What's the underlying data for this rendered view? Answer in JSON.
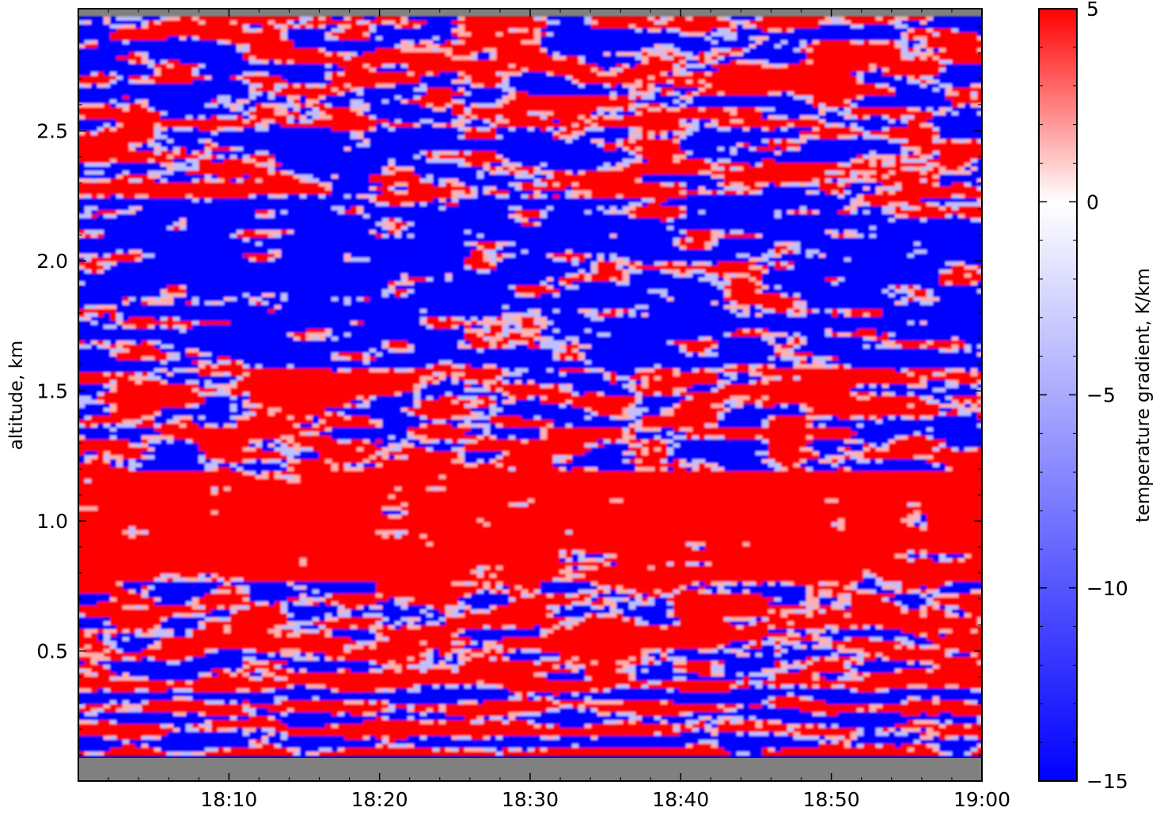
{
  "chart_data": [
    {
      "type": "heatmap",
      "title": "",
      "xlabel": "",
      "ylabel": "altitude, km",
      "x_tick_labels": [
        "18:10",
        "18:20",
        "18:30",
        "18:40",
        "18:50",
        "19:00"
      ],
      "x_tick_values": [
        "18:10",
        "18:20",
        "18:30",
        "18:40",
        "18:50",
        "19:00"
      ],
      "xlim": [
        "18:00",
        "19:00"
      ],
      "y_tick_labels": [
        "0.5",
        "1.0",
        "1.5",
        "2.0",
        "2.5"
      ],
      "y_tick_values": [
        0.5,
        1.0,
        1.5,
        2.0,
        2.5
      ],
      "ylim": [
        0.0,
        2.97
      ],
      "valid_altitude_range_km": [
        0.1,
        2.94
      ],
      "missing_data_color": "#808080",
      "grid": false,
      "dominant_layers": [
        {
          "altitude_km": [
            0.1,
            0.4
          ],
          "pattern": "alternating thin positive and negative layers"
        },
        {
          "altitude_km": [
            0.4,
            0.78
          ],
          "pattern": "mixed, mostly positive"
        },
        {
          "altitude_km": [
            0.78,
            1.2
          ],
          "pattern": "positive (inversion)"
        },
        {
          "altitude_km": [
            1.2,
            1.45
          ],
          "pattern": "mixed"
        },
        {
          "altitude_km": [
            1.45,
            1.6
          ],
          "pattern": "positive at start and end of period"
        },
        {
          "altitude_km": [
            1.6,
            2.25
          ],
          "pattern": "mostly negative with positive patches"
        },
        {
          "altitude_km": [
            2.25,
            2.94
          ],
          "pattern": "mixed positive and negative"
        }
      ]
    },
    {
      "type": "colorbar",
      "label": "temperature gradient, K/km",
      "range": [
        -15,
        5
      ],
      "tick_labels": [
        "5",
        "0",
        "−5",
        "−10",
        "−15"
      ],
      "tick_values": [
        5,
        0,
        -5,
        -10,
        -15
      ],
      "colors": {
        "min": "#0000ff",
        "zero": "#ffffff",
        "max": "#ff0000"
      }
    }
  ]
}
